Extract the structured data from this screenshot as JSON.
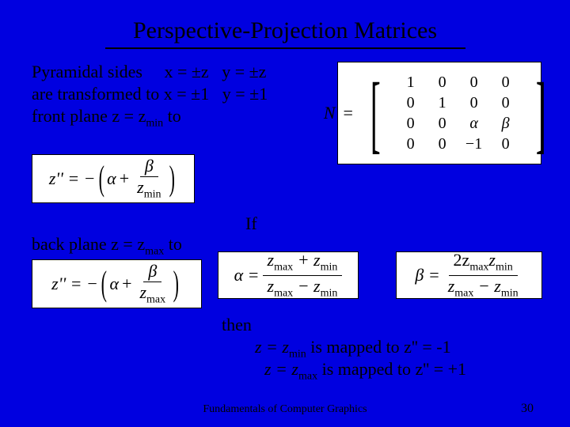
{
  "title": "Perspective-Projection Matrices",
  "line1_a": "Pyramidal sides",
  "line1_b": "x = ±z",
  "line1_c": "y = ±z",
  "line2_a": "are transformed to x = ±1",
  "line2_b": "y = ±1",
  "line3_a": "front plane z = z",
  "line3_sub": "min",
  "line3_b": " to",
  "matrix_label": "N",
  "matrix_eq": "=",
  "m": [
    [
      "1",
      "0",
      "0",
      "0"
    ],
    [
      "0",
      "1",
      "0",
      "0"
    ],
    [
      "0",
      "0",
      "α",
      "β"
    ],
    [
      "0",
      "0",
      "−1",
      "0"
    ]
  ],
  "zpp_lhs": "z'' = −",
  "alpha": "α",
  "plus": "+",
  "beta": "β",
  "zmin": "z",
  "zmin_sub": "min",
  "zmax": "z",
  "zmax_sub": "max",
  "back_a": "back plane z = z",
  "back_sub": "max",
  "back_b": " to",
  "if_label": "If",
  "alpha_eq_lhs": "α =",
  "alpha_num_a": "z",
  "alpha_num_a_sub": "max",
  "alpha_num_plus": " + z",
  "alpha_num_b_sub": "min",
  "alpha_den_a": "z",
  "alpha_den_a_sub": "max",
  "alpha_den_minus": " − z",
  "alpha_den_b_sub": "min",
  "beta_eq_lhs": "β =",
  "beta_num": "2z",
  "beta_num_a_sub": "max",
  "beta_num_b": "z",
  "beta_num_b_sub": "min",
  "then_label": "then",
  "map1_a": "z = z",
  "map1_sub": "min",
  "map1_b": " is mapped to z'' = -1",
  "map2_a": "z = z",
  "map2_sub": "max",
  "map2_b": " is mapped to z'' = +1",
  "footer": "Fundamentals of Computer Graphics",
  "page": "30"
}
